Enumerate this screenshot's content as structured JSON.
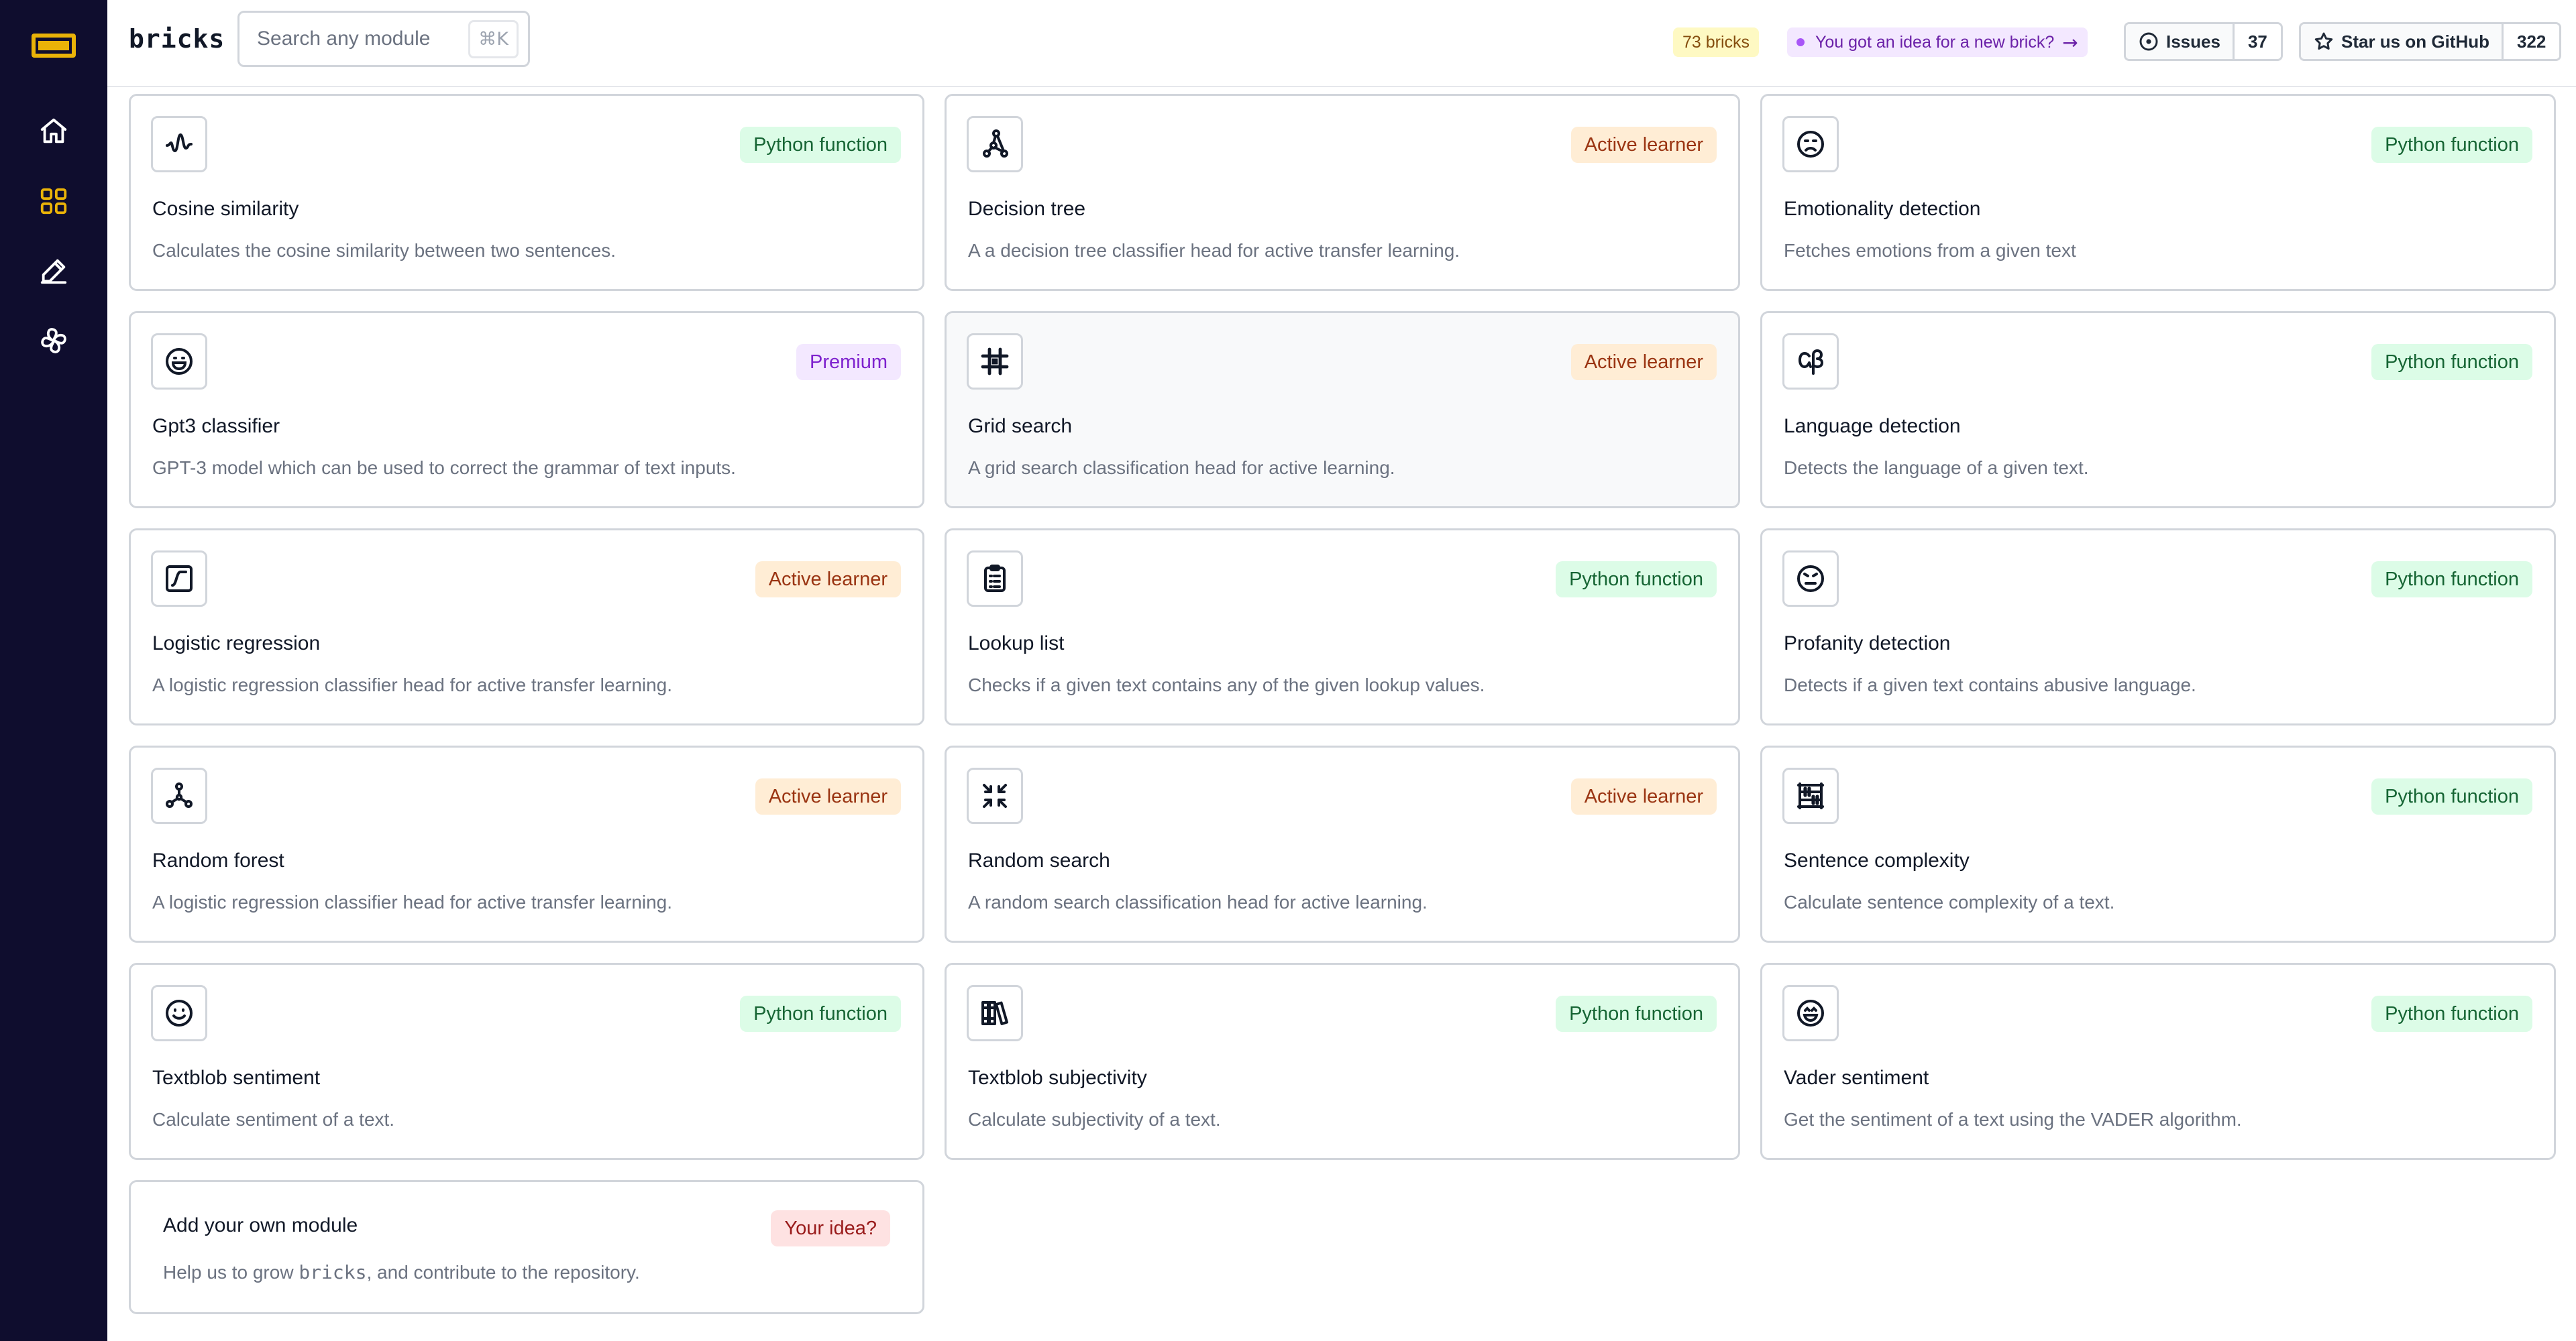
{
  "header": {
    "brand": "bricks",
    "search_placeholder": "Search any module",
    "search_shortcut": "⌘K",
    "brick_count": "73 bricks",
    "idea_prompt": "You got an idea for a new brick?",
    "idea_arrow": "→",
    "issues_label": "Issues",
    "issues_count": "37",
    "github_label": "Star us on GitHub",
    "github_count": "322"
  },
  "sidebar": {
    "items": [
      {
        "icon": "home-icon"
      },
      {
        "icon": "grid-icon",
        "active": true
      },
      {
        "icon": "pencil-icon"
      },
      {
        "icon": "pinwheel-icon"
      }
    ]
  },
  "colors": {
    "sidebar_bg": "#0f0d2e",
    "accent": "#eab308",
    "python_badge": "#dcfce7",
    "active_learner_badge": "#ffedd5",
    "premium_badge": "#f3e8ff",
    "idea_badge": "#fee2e2"
  },
  "modules": [
    {
      "title": "Cosine similarity",
      "description": "Calculates the cosine similarity between two sentences.",
      "badge": "Python function",
      "icon": "wave-icon"
    },
    {
      "title": "Decision tree",
      "description": "A a decision tree classifier head for active transfer learning.",
      "badge": "Active learner",
      "icon": "tree-icon"
    },
    {
      "title": "Emotionality detection",
      "description": "Fetches emotions from a given text",
      "badge": "Python function",
      "icon": "frown-face-icon"
    },
    {
      "title": "Gpt3 classifier",
      "description": "GPT-3 model which can be used to correct the grammar of text inputs.",
      "badge": "Premium",
      "icon": "grin-face-icon"
    },
    {
      "title": "Grid search",
      "description": "A grid search classification head for active learning.",
      "badge": "Active learner",
      "icon": "grid-hash-icon"
    },
    {
      "title": "Language detection",
      "description": "Detects the language of a given text.",
      "badge": "Python function",
      "icon": "alpha-beta-icon"
    },
    {
      "title": "Logistic regression",
      "description": "A logistic regression classifier head for active transfer learning.",
      "badge": "Active learner",
      "icon": "sigmoid-icon"
    },
    {
      "title": "Lookup list",
      "description": "Checks if a given text contains any of the given lookup values.",
      "badge": "Python function",
      "icon": "clipboard-list-icon"
    },
    {
      "title": "Profanity detection",
      "description": "Detects if a given text contains abusive language.",
      "badge": "Python function",
      "icon": "angry-face-icon"
    },
    {
      "title": "Random forest",
      "description": "A logistic regression classifier head for active transfer learning.",
      "badge": "Active learner",
      "icon": "network-icon"
    },
    {
      "title": "Random search",
      "description": "A random search classification head for active learning.",
      "badge": "Active learner",
      "icon": "arrows-shrink-icon"
    },
    {
      "title": "Sentence complexity",
      "description": "Calculate sentence complexity of a text.",
      "badge": "Python function",
      "icon": "abacus-icon"
    },
    {
      "title": "Textblob sentiment",
      "description": "Calculate sentiment of a text.",
      "badge": "Python function",
      "icon": "smile-face-icon"
    },
    {
      "title": "Textblob subjectivity",
      "description": "Calculate subjectivity of a text.",
      "badge": "Python function",
      "icon": "books-icon"
    },
    {
      "title": "Vader sentiment",
      "description": "Get the sentiment of a text using the VADER algorithm.",
      "badge": "Python function",
      "icon": "happy-face-icon"
    }
  ],
  "add_card": {
    "title": "Add your own module",
    "desc_prefix": "Help us to grow ",
    "desc_code": "bricks",
    "desc_suffix": ", and contribute to the repository.",
    "badge": "Your idea?"
  }
}
